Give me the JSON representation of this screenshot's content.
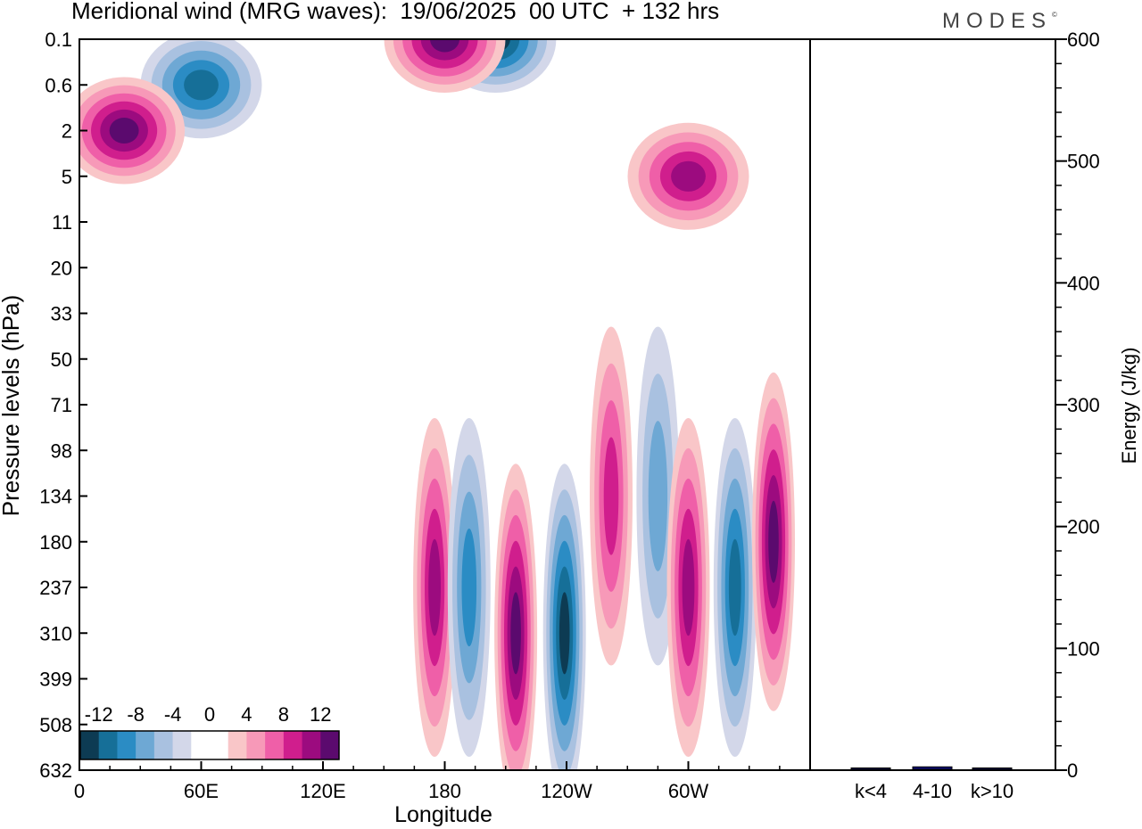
{
  "header": {
    "title": "Meridional wind (MRG waves):  19/06/2025  00 UTC  + 132 hrs",
    "logo": "MODES",
    "logo_mark": "©"
  },
  "chart_data": [
    {
      "type": "heatmap",
      "title": "Meridional wind (MRG waves):  19/06/2025  00 UTC  + 132 hrs",
      "xlabel": "Longitude",
      "ylabel": "Pressure levels (hPa)",
      "x_ticks": [
        "0",
        "60E",
        "120E",
        "180",
        "120W",
        "60W"
      ],
      "x_tick_degrees": [
        0,
        60,
        120,
        180,
        240,
        300
      ],
      "xlim": [
        0,
        360
      ],
      "y_ticks": [
        "0.1",
        "0.6",
        "2",
        "5",
        "11",
        "20",
        "33",
        "50",
        "71",
        "98",
        "134",
        "180",
        "237",
        "310",
        "399",
        "508",
        "632"
      ],
      "y_scale": "model levels (non-linear)",
      "y_inverted": false,
      "colorbar": {
        "labels": [
          "-12",
          "-8",
          "-4",
          "0",
          "4",
          "8",
          "12"
        ],
        "colors": [
          "#0d3b53",
          "#166f98",
          "#2b8cc4",
          "#6ea8d4",
          "#a9c1e0",
          "#d3d7e9",
          "#ffffff",
          "#ffffff",
          "#f9c6c8",
          "#f799b8",
          "#ef5fa8",
          "#d01e8d",
          "#9c0b7f",
          "#5b0a6e"
        ],
        "placement": "bottom-left inside plot"
      },
      "features": [
        {
          "sign": "negative",
          "lon": 60,
          "level": "0.6",
          "amp": 10
        },
        {
          "sign": "positive",
          "lon": 22,
          "level": "2",
          "amp": 14
        },
        {
          "sign": "negative",
          "lon": 205,
          "level": "0.1",
          "amp": 14
        },
        {
          "sign": "positive",
          "lon": 180,
          "level": "0.1",
          "amp": 12
        },
        {
          "sign": "positive",
          "lon": 300,
          "level": "5",
          "amp": 10
        },
        {
          "sign": "positive",
          "lon": 175,
          "level": "237",
          "amp": 10
        },
        {
          "sign": "negative",
          "lon": 192,
          "level": "237",
          "amp": 8
        },
        {
          "sign": "positive",
          "lon": 215,
          "level": "310",
          "amp": 12
        },
        {
          "sign": "negative",
          "lon": 239,
          "level": "310",
          "amp": 14
        },
        {
          "sign": "positive",
          "lon": 262,
          "level": "134",
          "amp": 8
        },
        {
          "sign": "negative",
          "lon": 285,
          "level": "134",
          "amp": 6
        },
        {
          "sign": "positive",
          "lon": 300,
          "level": "237",
          "amp": 9
        },
        {
          "sign": "negative",
          "lon": 323,
          "level": "237",
          "amp": 9
        },
        {
          "sign": "positive",
          "lon": 342,
          "level": "180",
          "amp": 12
        }
      ]
    },
    {
      "type": "bar",
      "title": "",
      "categories": [
        "k<4",
        "4-10",
        "k>10"
      ],
      "values": [
        0,
        2,
        0
      ],
      "ylabel": "Energy (J/kg)",
      "ylim": [
        0,
        600
      ],
      "y_ticks": [
        "0",
        "100",
        "200",
        "300",
        "400",
        "500",
        "600"
      ],
      "bar_color": "#0d0d7a",
      "axis_side": "right"
    }
  ]
}
